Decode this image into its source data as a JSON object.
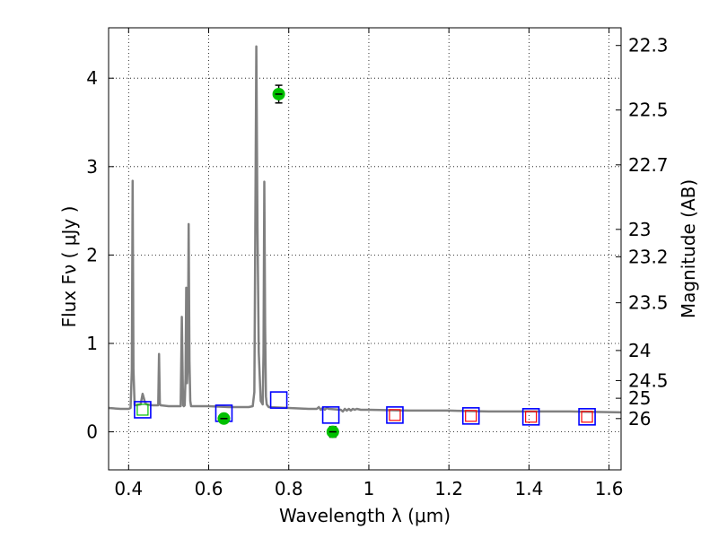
{
  "chart_data": {
    "type": "line",
    "title": "",
    "xlabel": "Wavelength  λ (μm)",
    "ylabel": "Flux  Fν  ( μJy )",
    "y2label": "Magnitude (AB)",
    "xlim": [
      0.35,
      1.63
    ],
    "ylim": [
      -0.43,
      4.57
    ],
    "grid": true,
    "xticks": [
      {
        "value": 0.4,
        "label": "0.4"
      },
      {
        "value": 0.6,
        "label": "0.6"
      },
      {
        "value": 0.8,
        "label": "0.8"
      },
      {
        "value": 1.0,
        "label": "1"
      },
      {
        "value": 1.2,
        "label": "1.2"
      },
      {
        "value": 1.4,
        "label": "1.4"
      },
      {
        "value": 1.6,
        "label": "1.6"
      }
    ],
    "yticks": [
      {
        "value": 0,
        "label": "0"
      },
      {
        "value": 1,
        "label": "1"
      },
      {
        "value": 2,
        "label": "2"
      },
      {
        "value": 3,
        "label": "3"
      },
      {
        "value": 4,
        "label": "4"
      }
    ],
    "y2ticks": [
      {
        "flux": 4.37,
        "label": "22.3"
      },
      {
        "flux": 3.64,
        "label": "22.5"
      },
      {
        "flux": 3.02,
        "label": "22.7"
      },
      {
        "flux": 2.29,
        "label": "23"
      },
      {
        "flux": 1.98,
        "label": "23.2"
      },
      {
        "flux": 1.46,
        "label": "23.5"
      },
      {
        "flux": 0.92,
        "label": "24"
      },
      {
        "flux": 0.58,
        "label": "24.5"
      },
      {
        "flux": 0.38,
        "label": "25"
      },
      {
        "flux": 0.15,
        "label": "26"
      }
    ],
    "model_spectrum": {
      "color": "#808080",
      "x": [
        0.35,
        0.38,
        0.4,
        0.405,
        0.408,
        0.41,
        0.412,
        0.415,
        0.43,
        0.435,
        0.438,
        0.441,
        0.445,
        0.46,
        0.474,
        0.476,
        0.478,
        0.48,
        0.5,
        0.53,
        0.533,
        0.536,
        0.538,
        0.54,
        0.542,
        0.544,
        0.546,
        0.548,
        0.55,
        0.552,
        0.554,
        0.556,
        0.6,
        0.65,
        0.7,
        0.71,
        0.714,
        0.716,
        0.719,
        0.722,
        0.725,
        0.73,
        0.735,
        0.737,
        0.739,
        0.741,
        0.743,
        0.745,
        0.75,
        0.8,
        0.85,
        0.87,
        0.875,
        0.88,
        0.885,
        0.89,
        0.895,
        0.9,
        0.93,
        0.935,
        0.94,
        0.945,
        0.95,
        0.955,
        0.96,
        0.965,
        0.97,
        0.98,
        1.0,
        1.1,
        1.2,
        1.3,
        1.4,
        1.5,
        1.63
      ],
      "y": [
        0.27,
        0.26,
        0.26,
        0.27,
        0.7,
        2.84,
        0.7,
        0.3,
        0.31,
        0.43,
        0.38,
        0.33,
        0.31,
        0.3,
        0.3,
        0.88,
        0.32,
        0.3,
        0.29,
        0.29,
        1.3,
        0.3,
        0.29,
        0.3,
        0.6,
        1.63,
        0.55,
        0.8,
        2.35,
        0.8,
        0.35,
        0.29,
        0.29,
        0.28,
        0.28,
        0.29,
        0.45,
        2.0,
        4.36,
        2.3,
        0.9,
        0.35,
        0.31,
        0.9,
        2.83,
        1.2,
        0.4,
        0.31,
        0.28,
        0.27,
        0.26,
        0.26,
        0.28,
        0.25,
        0.27,
        0.25,
        0.27,
        0.26,
        0.25,
        0.23,
        0.26,
        0.24,
        0.26,
        0.24,
        0.26,
        0.25,
        0.26,
        0.25,
        0.25,
        0.24,
        0.24,
        0.23,
        0.23,
        0.23,
        0.22
      ]
    },
    "observed_points": {
      "color": "#00c000",
      "points": [
        {
          "x": 0.638,
          "y": 0.15,
          "yerr": 0.03
        },
        {
          "x": 0.775,
          "y": 3.82,
          "yerr": 0.1
        },
        {
          "x": 0.91,
          "y": 0.0,
          "yerr": 0.06
        }
      ]
    },
    "model_photometry_blue": {
      "color": "#0000ff",
      "points": [
        {
          "x": 0.435,
          "y": 0.25
        },
        {
          "x": 0.638,
          "y": 0.21
        },
        {
          "x": 0.775,
          "y": 0.36
        },
        {
          "x": 0.905,
          "y": 0.19
        },
        {
          "x": 1.065,
          "y": 0.19
        },
        {
          "x": 1.255,
          "y": 0.18
        },
        {
          "x": 1.405,
          "y": 0.17
        },
        {
          "x": 1.545,
          "y": 0.17
        }
      ]
    },
    "model_photometry_red": {
      "color": "#ff0000",
      "points": [
        {
          "x": 1.065,
          "y": 0.19
        },
        {
          "x": 1.255,
          "y": 0.18
        },
        {
          "x": 1.405,
          "y": 0.17
        },
        {
          "x": 1.545,
          "y": 0.17
        }
      ]
    },
    "small_green_square": {
      "x": 0.435,
      "y": 0.25,
      "color": "#00c000"
    }
  }
}
